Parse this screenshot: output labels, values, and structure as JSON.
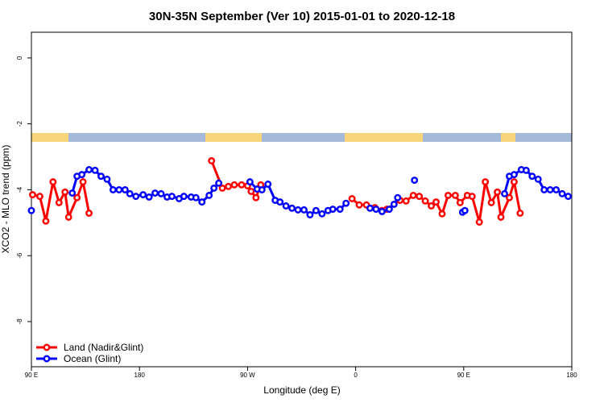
{
  "chart_data": {
    "type": "line",
    "title": "30N-35N September (Ver 10)   2015-01-01 to 2020-12-18",
    "x_label": "Longitude (deg E)",
    "y_label": "XCO2 - MLO trend (ppm)",
    "xlim": [
      90,
      540
    ],
    "ylim": [
      -9.37,
      0.78
    ],
    "xticks": [
      {
        "value": 90,
        "label": "90 E"
      },
      180,
      {
        "value": 270,
        "label": "90 W"
      },
      {
        "value": 360,
        "label": "0"
      },
      {
        "value": 450,
        "label": "90 E"
      },
      {
        "value": 540,
        "label": "180"
      }
    ],
    "yticks": [
      0,
      -2,
      -4,
      -6,
      -8
    ],
    "legend": "bottomleft",
    "series": [
      {
        "name": "Land (Nadir&Glint)",
        "color": "#ff0000",
        "x": [
          91,
          97,
          102,
          108,
          113,
          118,
          121,
          128,
          133,
          138,
          null,
          240,
          249,
          254,
          259,
          265,
          270,
          273,
          277,
          281,
          null,
          357,
          363,
          369,
          376,
          382,
          386,
          397,
          402,
          408,
          413,
          418,
          423,
          427,
          432,
          437,
          443,
          447,
          453,
          457,
          463,
          468,
          473,
          478,
          481,
          488,
          492,
          497
        ],
        "values": [
          -4.15,
          -4.2,
          -4.95,
          -3.76,
          -4.39,
          -4.07,
          -4.83,
          -4.24,
          -3.76,
          -4.71,
          null,
          -3.12,
          -3.95,
          -3.9,
          -3.85,
          -3.85,
          -3.88,
          -4.05,
          -4.24,
          -3.85,
          null,
          -4.27,
          -4.46,
          -4.46,
          -4.54,
          -4.63,
          -4.59,
          -4.32,
          -4.34,
          -4.17,
          -4.2,
          -4.34,
          -4.49,
          -4.37,
          -4.73,
          -4.17,
          -4.17,
          -4.39,
          -4.17,
          -4.2,
          -4.98,
          -3.76,
          -4.39,
          -4.07,
          -4.83,
          -4.24,
          -3.76,
          -4.71
        ]
      },
      {
        "name": "Ocean (Glint)",
        "color": "#0000ff",
        "x": [
          90,
          null,
          124,
          128,
          132,
          138,
          143,
          148,
          153,
          158,
          163,
          168,
          172,
          177,
          183,
          188,
          193,
          198,
          203,
          207,
          213,
          217,
          223,
          227,
          232,
          238,
          242,
          246,
          null,
          272,
          278,
          282,
          287,
          293,
          297,
          302,
          307,
          312,
          317,
          322,
          327,
          332,
          337,
          341,
          347,
          352,
          null,
          372,
          377,
          382,
          388,
          392,
          395,
          null,
          409,
          null,
          449,
          451,
          null,
          484,
          488,
          492,
          498,
          502,
          507,
          512,
          517,
          522,
          527,
          532,
          537
        ],
        "values": [
          -4.63,
          null,
          -4.1,
          -3.59,
          -3.54,
          -3.39,
          -3.41,
          -3.59,
          -3.68,
          -4.0,
          -4.0,
          -4.0,
          -4.12,
          -4.2,
          -4.15,
          -4.22,
          -4.1,
          -4.12,
          -4.22,
          -4.2,
          -4.27,
          -4.2,
          -4.22,
          -4.24,
          -4.37,
          -4.17,
          -3.95,
          -3.8,
          null,
          -3.76,
          -3.98,
          -4.0,
          -3.83,
          -4.32,
          -4.37,
          -4.49,
          -4.56,
          -4.61,
          -4.61,
          -4.76,
          -4.63,
          -4.73,
          -4.63,
          -4.59,
          -4.59,
          -4.41,
          null,
          -4.56,
          -4.59,
          -4.66,
          -4.59,
          -4.44,
          -4.24,
          null,
          -3.71,
          null,
          -4.68,
          -4.63,
          null,
          -4.12,
          -3.59,
          -3.54,
          -3.39,
          -3.41,
          -3.59,
          -3.68,
          -4.0,
          -4.0,
          -4.0,
          -4.12,
          -4.2
        ]
      }
    ]
  }
}
